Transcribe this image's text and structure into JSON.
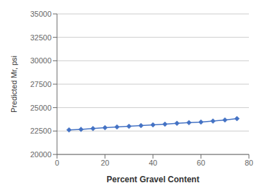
{
  "chart_data": {
    "type": "line",
    "xlabel": "Percent Gravel Content",
    "ylabel": "Predicted Mr, psi",
    "x": [
      5,
      10,
      15,
      20,
      25,
      30,
      35,
      40,
      45,
      50,
      55,
      60,
      65,
      70,
      75
    ],
    "values": [
      22620,
      22680,
      22760,
      22850,
      22930,
      23000,
      23080,
      23160,
      23230,
      23320,
      23390,
      23460,
      23560,
      23680,
      23820
    ],
    "xlim": [
      0,
      80
    ],
    "ylim": [
      20000,
      35000
    ],
    "xticks": [
      0,
      20,
      40,
      60,
      80
    ],
    "yticks": [
      20000,
      22500,
      25000,
      27500,
      30000,
      32500,
      35000
    ],
    "color": "#4472C4",
    "marker": "diamond",
    "grid": true
  }
}
